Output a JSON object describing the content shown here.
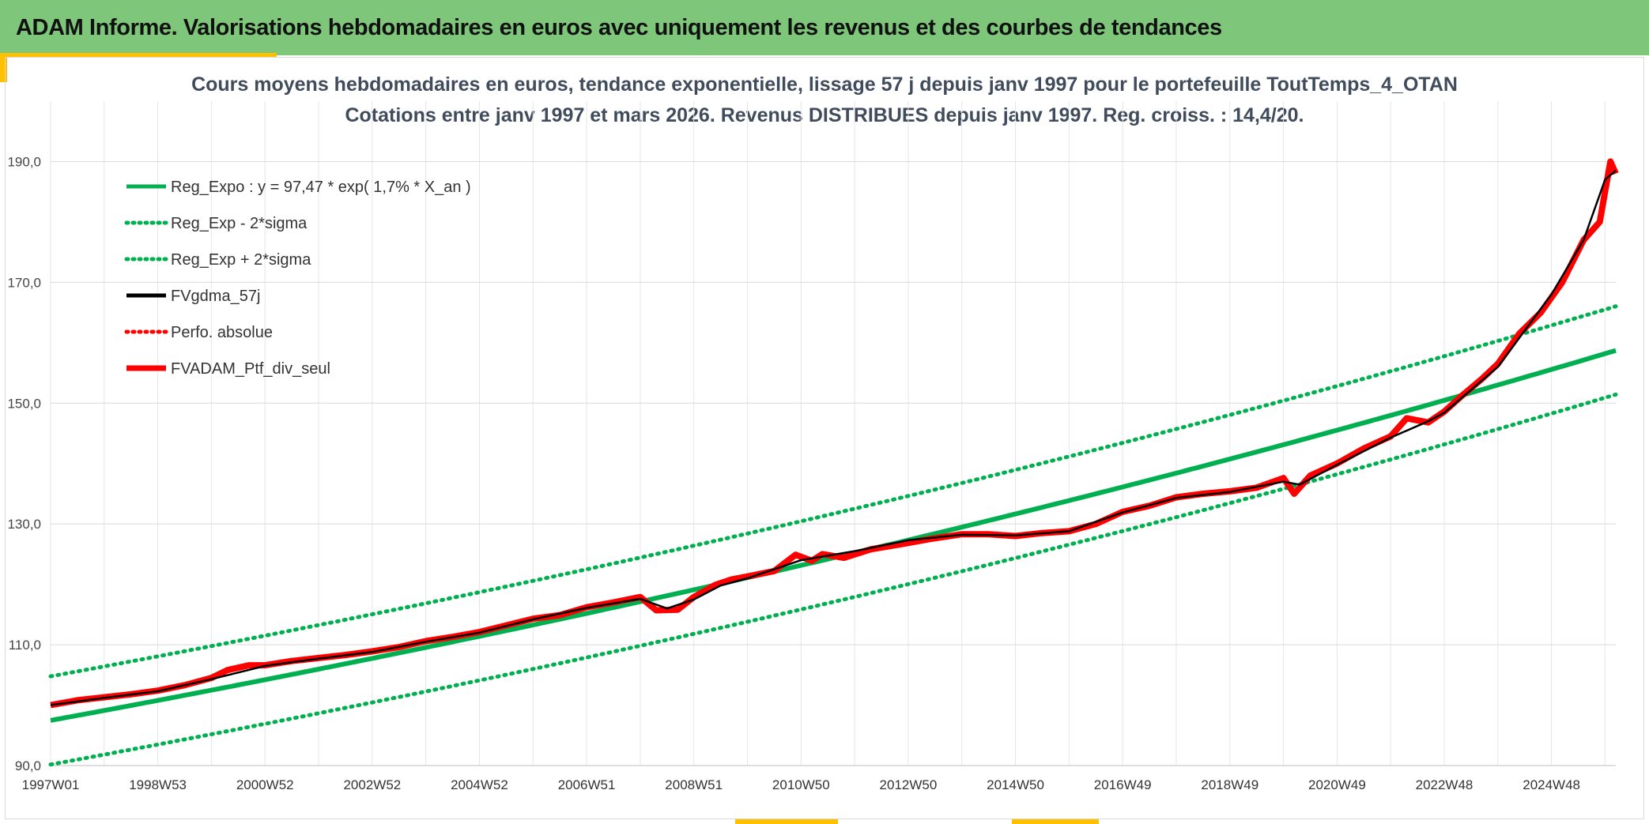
{
  "header": {
    "title": "ADAM Informe. Valorisations hebdomadaires en euros avec uniquement les revenus et des courbes de tendances"
  },
  "colors": {
    "header_bg": "#7dc67a",
    "accent": "#ffc000",
    "trend": "#00b050",
    "smooth": "#000000",
    "portfolio": "#ff0000"
  },
  "chart_data": {
    "type": "line",
    "title": "Cours moyens hebdomadaires en euros, tendance exponentielle, lissage 57 j depuis janv 1997 pour le portefeuille ToutTemps_4_OTAN",
    "subtitle": "Cotations entre janv 1997 et mars 2026. Revenus DISTRIBUES depuis janv 1997. Reg. croiss. : 14,4/20.",
    "xlabel": "",
    "ylabel": "",
    "ylim": [
      90,
      200
    ],
    "xlim": [
      1997.0,
      2026.2
    ],
    "y_ticks": [
      90,
      110,
      130,
      150,
      170,
      190
    ],
    "y_tick_labels": [
      "90,0",
      "110,0",
      "130,0",
      "150,0",
      "170,0",
      "190,0"
    ],
    "x_ticks": [
      1997.0,
      1999.0,
      2001.0,
      2003.0,
      2005.0,
      2007.0,
      2009.0,
      2011.0,
      2013.0,
      2015.0,
      2017.0,
      2019.0,
      2021.0,
      2023.0,
      2025.0
    ],
    "x_tick_labels": [
      "1997W01",
      "1998W53",
      "2000W52",
      "2002W52",
      "2004W52",
      "2006W51",
      "2008W51",
      "2010W50",
      "2012W50",
      "2014W50",
      "2016W49",
      "2018W49",
      "2020W49",
      "2022W48",
      "2024W48"
    ],
    "grid": true,
    "legend_position": "top-left",
    "legend": [
      {
        "label": "Reg_Expo : y = 97,47 * exp( 1,7% *  X_an )",
        "color": "#00b050",
        "style": "solid"
      },
      {
        "label": "Reg_Exp - 2*sigma",
        "color": "#00b050",
        "style": "dotted"
      },
      {
        "label": "Reg_Exp + 2*sigma",
        "color": "#00b050",
        "style": "dotted"
      },
      {
        "label": "FVgdma_57j",
        "color": "#000000",
        "style": "solid"
      },
      {
        "label": "Perfo. absolue",
        "color": "#ff0000",
        "style": "dotted"
      },
      {
        "label": "FVADAM_Ptf_div_seul",
        "color": "#ff0000",
        "style": "solid-thick"
      }
    ],
    "regression": {
      "a": 97.47,
      "rate": 0.0167,
      "sigma_offset": 7.3
    },
    "series": [
      {
        "name": "FVADAM_Ptf_div_seul",
        "x": [
          1997.0,
          1997.5,
          1998.0,
          1998.5,
          1999.0,
          1999.5,
          2000.0,
          2000.3,
          2000.7,
          2001.0,
          2001.5,
          2002.0,
          2002.5,
          2003.0,
          2003.5,
          2004.0,
          2004.5,
          2005.0,
          2005.5,
          2006.0,
          2006.5,
          2007.0,
          2007.5,
          2008.0,
          2008.3,
          2008.7,
          2009.0,
          2009.4,
          2009.7,
          2010.0,
          2010.5,
          2010.9,
          2011.2,
          2011.4,
          2011.8,
          2012.3,
          2012.9,
          2013.4,
          2014.0,
          2014.5,
          2015.0,
          2015.5,
          2016.0,
          2016.5,
          2017.0,
          2017.5,
          2018.0,
          2018.5,
          2019.0,
          2019.5,
          2020.0,
          2020.2,
          2020.5,
          2021.0,
          2021.5,
          2022.0,
          2022.3,
          2022.7,
          2023.0,
          2023.3,
          2023.7,
          2024.0,
          2024.4,
          2024.8,
          2025.2,
          2025.6,
          2025.9,
          2026.0,
          2026.1,
          2026.2
        ],
        "values": [
          100.0,
          100.8,
          101.3,
          101.8,
          102.4,
          103.3,
          104.5,
          105.8,
          106.6,
          106.6,
          107.3,
          107.8,
          108.3,
          108.9,
          109.6,
          110.6,
          111.3,
          112.1,
          113.2,
          114.3,
          114.9,
          116.2,
          117.0,
          117.9,
          115.7,
          115.8,
          117.9,
          119.9,
          120.8,
          121.3,
          122.2,
          124.9,
          123.9,
          125.0,
          124.4,
          125.8,
          126.7,
          127.5,
          128.3,
          128.3,
          128.0,
          128.5,
          128.8,
          130.0,
          132.0,
          133.0,
          134.4,
          135.0,
          135.4,
          136.0,
          137.6,
          135.0,
          138.0,
          140.0,
          142.5,
          144.5,
          147.5,
          146.8,
          148.6,
          151.0,
          154.0,
          156.5,
          161.5,
          165.0,
          170.0,
          177.0,
          180.0,
          185.0,
          190.0,
          188.0
        ]
      },
      {
        "name": "FVgdma_57j",
        "x": [
          1997.0,
          1998.0,
          1999.0,
          2000.0,
          2001.0,
          2002.0,
          2003.0,
          2004.0,
          2005.0,
          2006.0,
          2007.0,
          2008.0,
          2008.5,
          2009.0,
          2009.5,
          2010.0,
          2011.0,
          2012.0,
          2013.0,
          2014.0,
          2015.0,
          2016.0,
          2017.0,
          2018.0,
          2019.0,
          2020.0,
          2020.3,
          2021.0,
          2022.0,
          2022.7,
          2023.0,
          2024.0,
          2025.0,
          2025.6,
          2026.0,
          2026.2
        ],
        "values": [
          100.0,
          101.2,
          102.3,
          104.3,
          106.5,
          107.7,
          108.8,
          110.5,
          112.0,
          114.2,
          116.1,
          117.6,
          116.0,
          117.5,
          119.8,
          121.0,
          124.0,
          125.5,
          127.3,
          128.2,
          128.1,
          128.8,
          131.9,
          134.3,
          135.3,
          137.0,
          136.5,
          139.8,
          144.3,
          147.0,
          148.4,
          156.0,
          168.0,
          177.0,
          187.0,
          188.5
        ]
      }
    ]
  }
}
